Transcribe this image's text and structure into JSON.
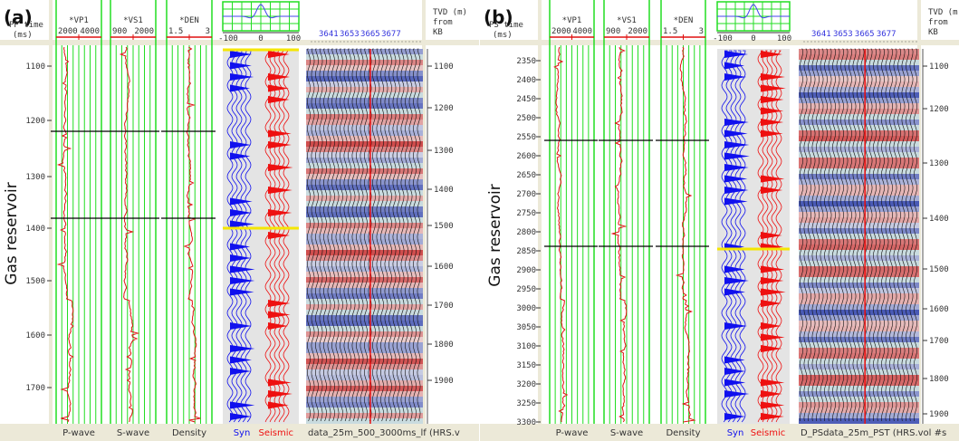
{
  "chart_data": [
    {
      "type": "line",
      "panel_label": "(a)",
      "left_axis": {
        "title": [
          "PP time",
          "(ms)"
        ],
        "ticks": [
          "1100",
          "1200",
          "1300",
          "1400",
          "1500",
          "1600",
          "1700"
        ],
        "range": [
          1050,
          1760
        ]
      },
      "right_axis": {
        "title": [
          "TVD (m)",
          "from",
          "KB"
        ],
        "ticks": [
          "1100",
          "1200",
          "1300",
          "1400",
          "1500",
          "1600",
          "1700",
          "1800",
          "1900"
        ]
      },
      "tracks": [
        {
          "curve": "*VP1",
          "scale": [
            "2000",
            "4000"
          ],
          "footer": "P-wave"
        },
        {
          "curve": "*VS1",
          "scale": [
            "900",
            "2000"
          ],
          "footer": "S-wave"
        },
        {
          "curve": "*DEN",
          "scale": [
            "1.5",
            "3"
          ],
          "footer": "Density"
        }
      ],
      "wavelet_axis": [
        "-100",
        "0",
        "100"
      ],
      "trace_numbers": [
        "3641",
        "3653",
        "3665",
        "3677"
      ],
      "syn_label": "Syn",
      "seismic_label": "Seismic",
      "section_label": "data_25m_500_3000ms_lf (HRS.v",
      "annotation": "Gas reservoir",
      "reservoir_time_ms": [
        1215,
        1380
      ],
      "colors": {
        "log": "#e01010",
        "grid": "#22dd22",
        "syn": "#1010ee",
        "seismic": "#ee1010",
        "horizon": "#f5e600"
      }
    },
    {
      "type": "line",
      "panel_label": "(b)",
      "left_axis": {
        "title": [
          "PS time",
          "(ms)"
        ],
        "ticks": [
          "2350",
          "2400",
          "2450",
          "2500",
          "2550",
          "2600",
          "2650",
          "2700",
          "2750",
          "2800",
          "2850",
          "2900",
          "2950",
          "3000",
          "3050",
          "3100",
          "3150",
          "3200",
          "3250",
          "3300"
        ],
        "range": [
          2330,
          3310
        ]
      },
      "right_axis": {
        "title": [
          "TVD (m)",
          "from",
          "KB"
        ],
        "ticks": [
          "1100",
          "1200",
          "1300",
          "1400",
          "1500",
          "1600",
          "1700",
          "1800",
          "1900"
        ]
      },
      "tracks": [
        {
          "curve": "*VP1",
          "scale": [
            "2000",
            "4000"
          ],
          "footer": "P-wave"
        },
        {
          "curve": "*VS1",
          "scale": [
            "900",
            "2000"
          ],
          "footer": "S-wave"
        },
        {
          "curve": "*DEN",
          "scale": [
            "1.5",
            "3"
          ],
          "footer": "Density"
        }
      ],
      "wavelet_axis": [
        "-100",
        "0",
        "100"
      ],
      "trace_numbers": [
        "3641",
        "3653",
        "3665",
        "3677"
      ],
      "syn_label": "Syn",
      "seismic_label": "Seismic",
      "section_label": "D_PSdata_25m_PST (HRS.vol #s",
      "annotation": "Gas reservoir",
      "reservoir_time_ms": [
        2565,
        2845
      ],
      "colors": {
        "log": "#e01010",
        "grid": "#22dd22",
        "syn": "#1010ee",
        "seismic": "#ee1010",
        "horizon": "#f5e600"
      }
    }
  ]
}
